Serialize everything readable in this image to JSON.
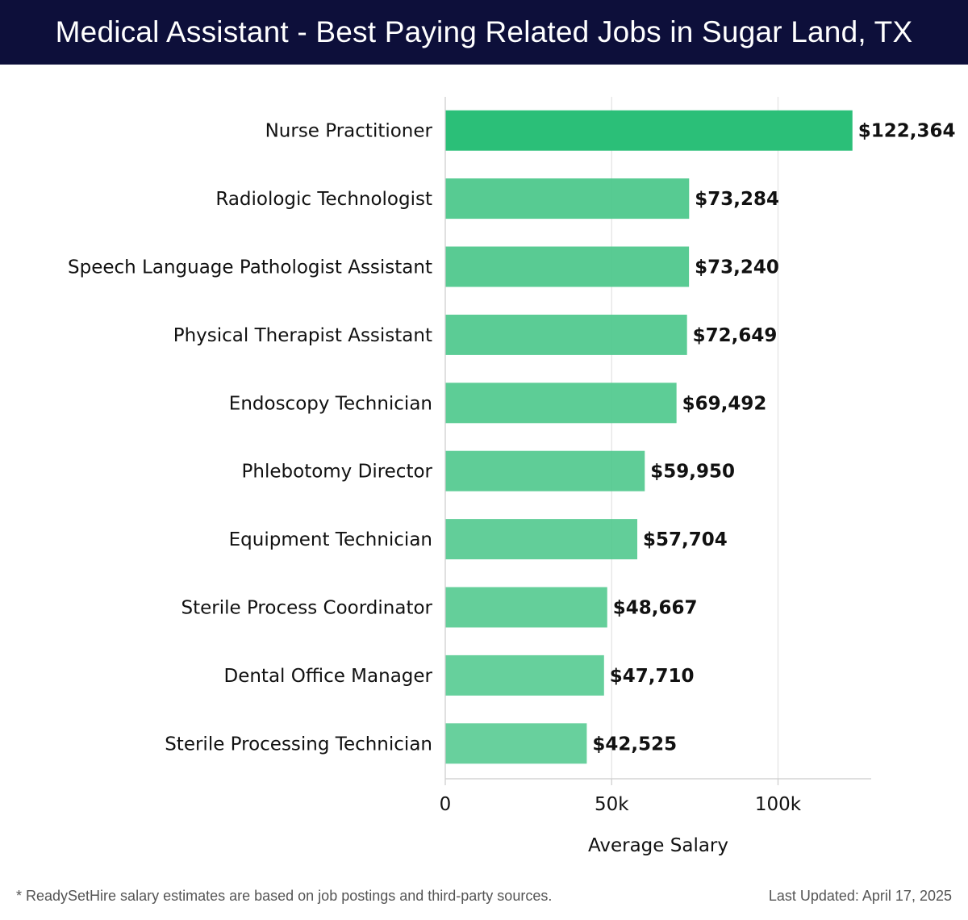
{
  "header": {
    "title": "Medical Assistant - Best Paying Related Jobs in Sugar Land, TX"
  },
  "chart_data": {
    "type": "bar",
    "orientation": "horizontal",
    "title": "Medical Assistant - Best Paying Related Jobs in Sugar Land, TX",
    "xlabel": "Average Salary",
    "ylabel": "",
    "xlim": [
      0,
      128000
    ],
    "x_ticks": [
      {
        "value": 0,
        "label": "0"
      },
      {
        "value": 50000,
        "label": "50k"
      },
      {
        "value": 100000,
        "label": "100k"
      }
    ],
    "grid": "vertical",
    "categories": [
      "Nurse Practitioner",
      "Radiologic Technologist",
      "Speech Language Pathologist Assistant",
      "Physical Therapist Assistant",
      "Endoscopy Technician",
      "Phlebotomy Director",
      "Equipment Technician",
      "Sterile Process Coordinator",
      "Dental Office Manager",
      "Sterile Processing Technician"
    ],
    "values": [
      122364,
      73284,
      73240,
      72649,
      69492,
      59950,
      57704,
      48667,
      47710,
      42525
    ],
    "value_labels": [
      "$122,364",
      "$73,284",
      "$73,240",
      "$72,649",
      "$69,492",
      "$59,950",
      "$57,704",
      "$48,667",
      "$47,710",
      "$42,525"
    ],
    "colors": {
      "top_bar": "#2bbf78",
      "other_bars": "#4ec88c",
      "grid": "#e3e3e3",
      "axis": "#cccccc"
    }
  },
  "footer": {
    "note": "* ReadySetHire salary estimates are based on job postings and third-party sources.",
    "updated": "Last Updated: April 17, 2025"
  }
}
